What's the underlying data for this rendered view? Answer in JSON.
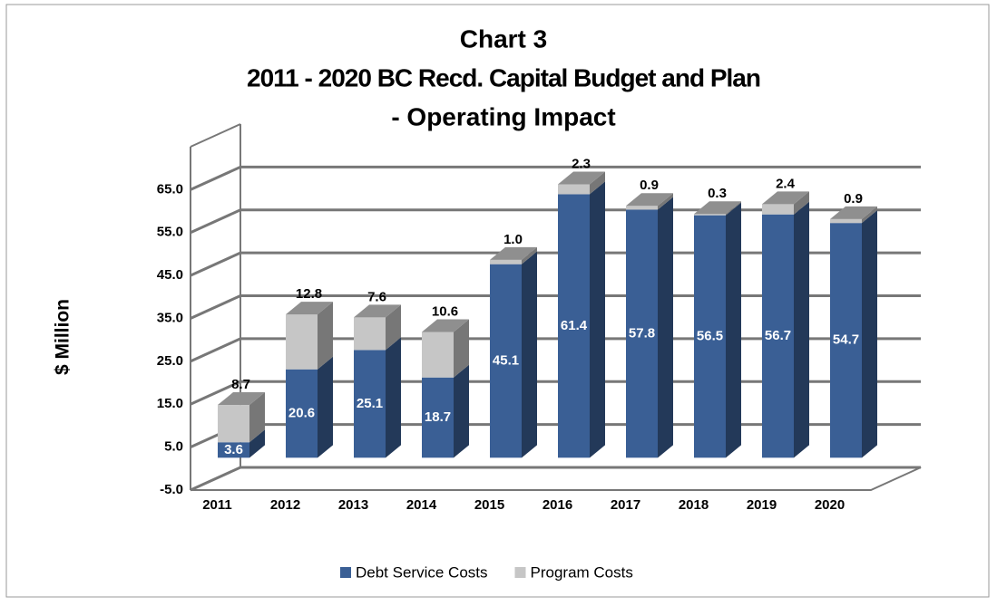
{
  "chart_data": {
    "type": "bar",
    "stacked": true,
    "title": [
      "Chart 3",
      "2011 - 2020 BC Recd. Capital Budget and Plan",
      "- Operating Impact"
    ],
    "y_label": "$ Million",
    "categories": [
      "2011",
      "2012",
      "2013",
      "2014",
      "2015",
      "2016",
      "2017",
      "2018",
      "2019",
      "2020"
    ],
    "series": [
      {
        "name": "Debt Service Costs",
        "color": "#3a5f95",
        "values": [
          3.6,
          20.6,
          25.1,
          18.7,
          45.1,
          61.4,
          57.8,
          56.5,
          56.7,
          54.7
        ],
        "value_labels": [
          "3.6",
          "20.6",
          "25.1",
          "18.7",
          "45.1",
          "61.4",
          "57.8",
          "56.5",
          "56.7",
          "54.7"
        ]
      },
      {
        "name": "Program Costs",
        "color": "#c6c6c6",
        "values": [
          8.7,
          12.8,
          7.6,
          10.6,
          1.0,
          2.3,
          0.9,
          0.3,
          2.4,
          0.9
        ],
        "value_labels": [
          "8.7",
          "12.8",
          "7.6",
          "10.6",
          "1.0",
          "2.3",
          "0.9",
          "0.3",
          "2.4",
          "0.9"
        ]
      }
    ],
    "ylim": [
      -5,
      75
    ],
    "yticks": [
      {
        "value": -5,
        "label": "-5.0"
      },
      {
        "value": 5,
        "label": "5.0"
      },
      {
        "value": 15,
        "label": "15.0"
      },
      {
        "value": 25,
        "label": "25.0"
      },
      {
        "value": 35,
        "label": "35.0"
      },
      {
        "value": 45,
        "label": "45.0"
      },
      {
        "value": 55,
        "label": "55.0"
      },
      {
        "value": 65,
        "label": "65.0"
      }
    ],
    "grid": true,
    "legend": "bottom"
  }
}
